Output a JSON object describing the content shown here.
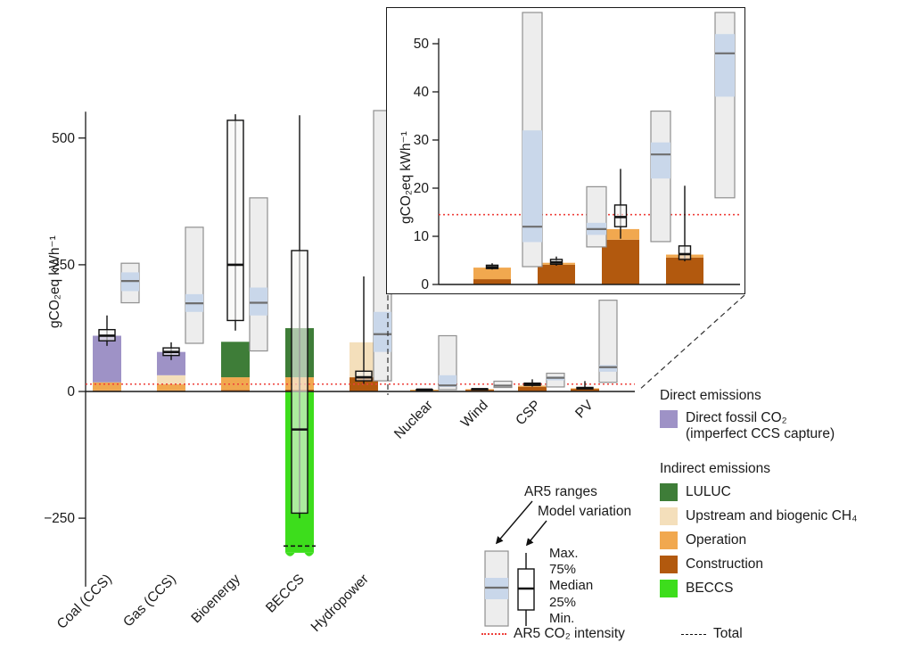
{
  "colors": {
    "direct_fossil": "#9e92c6",
    "luluc": "#3e7d38",
    "upstream_ch4": "#f4dfbb",
    "operation": "#f1a84f",
    "construction": "#b2590e",
    "beccs": "#3ddd1c",
    "ar5_band": "#c9d7ea",
    "ar5_box": "#ededed",
    "ar5_intensity": "#ee3f3a"
  },
  "legend": {
    "direct_header": "Direct emissions",
    "direct_item": {
      "label": "Direct fossil CO₂",
      "sublabel": "(imperfect CCS capture)"
    },
    "indirect_header": "Indirect emissions",
    "indirect_items": [
      {
        "label": "LULUC",
        "color_key": "luluc"
      },
      {
        "label": "Upstream and biogenic CH₄",
        "color_key": "upstream_ch4"
      },
      {
        "label": "Operation",
        "color_key": "operation"
      },
      {
        "label": "Construction",
        "color_key": "construction"
      },
      {
        "label": "BECCS",
        "color_key": "beccs"
      }
    ],
    "ar5_intensity_label": "AR5 CO₂ intensity",
    "total_label": "Total",
    "boxplot": {
      "ar5_label": "AR5 ranges",
      "model_label": "Model variation",
      "stats": [
        "Max.",
        "75%",
        "Median",
        "25%",
        "Min."
      ]
    }
  },
  "chart_data": [
    {
      "id": "main",
      "type": "bar",
      "ylabel": "gCO₂eq kWh⁻¹",
      "yticks": [
        -250,
        0,
        250,
        500
      ],
      "ylim": [
        -390,
        555
      ],
      "ar5_co2_intensity": 14.5,
      "grid": false,
      "stack_order": [
        "construction",
        "operation",
        "upstream_ch4",
        "luluc",
        "direct_fossil"
      ],
      "technologies": [
        {
          "name": "Coal (CCS)",
          "bar": {
            "construction": 2,
            "operation": 16,
            "direct_fossil": 92
          },
          "model_variation": {
            "min": 90,
            "q1": 100,
            "median": 110,
            "q3": 122,
            "max": 150
          },
          "ar5_range": {
            "min": 175,
            "band_low": 198,
            "median": 218,
            "band_high": 235,
            "max": 253
          }
        },
        {
          "name": "Gas (CCS)",
          "bar": {
            "construction": 2,
            "operation": 12,
            "upstream_ch4": 18,
            "direct_fossil": 46
          },
          "model_variation": {
            "min": 62,
            "q1": 71,
            "median": 78,
            "q3": 86,
            "max": 97
          },
          "ar5_range": {
            "min": 95,
            "band_low": 157,
            "median": 174,
            "band_high": 192,
            "max": 324
          }
        },
        {
          "name": "Bioenergy",
          "bar": {
            "construction": 3,
            "operation": 25,
            "luluc": 70
          },
          "model_variation": {
            "min": 120,
            "q1": 140,
            "median": 250,
            "q3": 535,
            "max": 547
          },
          "ar5_range": {
            "min": 80,
            "band_low": 150,
            "median": 175,
            "band_high": 205,
            "max": 382
          }
        },
        {
          "name": "BECCS",
          "bar": {
            "construction": 4,
            "operation": 24,
            "luluc": 97,
            "beccs": -430
          },
          "bar_clip_bottom": -318,
          "total": -305,
          "model_variation": {
            "min": -250,
            "q1": -240,
            "median": -75,
            "q3": 278,
            "max": 545
          }
        },
        {
          "name": "Hydropower",
          "bar": {
            "construction": 28,
            "upstream_ch4": 69
          },
          "model_variation": {
            "min": 15,
            "q1": 21,
            "median": 28,
            "q3": 40,
            "max": 227
          },
          "ar5_range": {
            "min": 21,
            "band_low": 78,
            "median": 113,
            "band_high": 157,
            "max": 2200
          }
        },
        {
          "name": "Nuclear",
          "bar": {
            "construction": 1.1,
            "operation": 2.4
          },
          "model_variation": {
            "min": 3.1,
            "q1": 3.3,
            "median": 3.6,
            "q3": 4.0,
            "max": 4.4
          },
          "ar5_range": {
            "min": 3.7,
            "band_low": 8.8,
            "median": 12,
            "band_high": 32,
            "max": 110
          }
        },
        {
          "name": "Wind",
          "bar": {
            "construction": 4.1,
            "operation": 0.4
          },
          "model_variation": {
            "min": 3.9,
            "q1": 4.2,
            "median": 4.6,
            "q3": 5.2,
            "max": 5.8
          },
          "ar5_range": {
            "min": 7.8,
            "band_low": 10.3,
            "median": 11.5,
            "band_high": 12.8,
            "max": 20.3
          }
        },
        {
          "name": "CSP",
          "bar": {
            "construction": 9.3,
            "operation": 2.2
          },
          "model_variation": {
            "min": 9.5,
            "q1": 12,
            "median": 14,
            "q3": 16.5,
            "max": 24
          },
          "ar5_range": {
            "min": 8.9,
            "band_low": 22,
            "median": 27,
            "band_high": 29.5,
            "max": 36
          }
        },
        {
          "name": "PV",
          "bar": {
            "construction": 5.6,
            "operation": 0.6
          },
          "model_variation": {
            "min": 4.8,
            "q1": 5.2,
            "median": 6.3,
            "q3": 8,
            "max": 20.5
          },
          "ar5_range": {
            "min": 18,
            "band_low": 39,
            "median": 48,
            "band_high": 52,
            "max": 180
          }
        }
      ]
    },
    {
      "id": "inset",
      "type": "bar",
      "ylabel": "gCO₂eq kWh⁻¹",
      "yticks": [
        0,
        10,
        20,
        30,
        40,
        50
      ],
      "ylim": [
        0,
        56
      ],
      "ar5_co2_intensity": 14.5,
      "grid": false,
      "stack_order": [
        "construction",
        "operation"
      ],
      "technologies": [
        {
          "name": "Nuclear",
          "bar": {
            "construction": 1.1,
            "operation": 2.4
          },
          "model_variation": {
            "min": 3.1,
            "q1": 3.3,
            "median": 3.6,
            "q3": 4.0,
            "max": 4.4
          },
          "ar5_range": {
            "min": 3.7,
            "band_low": 8.8,
            "median": 12,
            "band_high": 32,
            "max": 110
          }
        },
        {
          "name": "Wind",
          "bar": {
            "construction": 4.1,
            "operation": 0.4
          },
          "model_variation": {
            "min": 3.9,
            "q1": 4.2,
            "median": 4.6,
            "q3": 5.2,
            "max": 5.8
          },
          "ar5_range": {
            "min": 7.8,
            "band_low": 10.3,
            "median": 11.5,
            "band_high": 12.8,
            "max": 20.3
          }
        },
        {
          "name": "CSP",
          "bar": {
            "construction": 9.3,
            "operation": 2.2
          },
          "model_variation": {
            "min": 9.5,
            "q1": 12,
            "median": 14,
            "q3": 16.5,
            "max": 24
          },
          "ar5_range": {
            "min": 8.9,
            "band_low": 22,
            "median": 27,
            "band_high": 29.5,
            "max": 36
          }
        },
        {
          "name": "PV",
          "bar": {
            "construction": 5.6,
            "operation": 0.6
          },
          "model_variation": {
            "min": 4.8,
            "q1": 5.2,
            "median": 6.3,
            "q3": 8,
            "max": 20.5
          },
          "ar5_range": {
            "min": 18,
            "band_low": 39,
            "median": 48,
            "band_high": 52,
            "max": 180
          }
        }
      ]
    }
  ]
}
